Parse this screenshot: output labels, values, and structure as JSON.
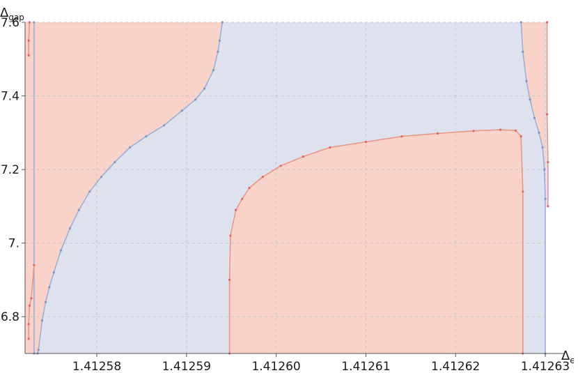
{
  "chart_data": {
    "type": "area",
    "title": "",
    "xlabel": {
      "symbol": "Δ",
      "sub": "ϵ"
    },
    "ylabel": {
      "symbol": "Δ",
      "sub": "gap"
    },
    "xlim": [
      1.412572,
      1.41263
    ],
    "ylim": [
      6.7,
      7.6
    ],
    "xticks": [
      1.41258,
      1.41259,
      1.4126,
      1.41261,
      1.41262,
      1.41263
    ],
    "xtick_labels": [
      "1.41258",
      "1.41259",
      "1.41260",
      "1.41261",
      "1.41262",
      "1.41263"
    ],
    "yticks": [
      6.8,
      7.0,
      7.2,
      7.4,
      7.6
    ],
    "ytick_labels": [
      "6.8",
      "7.",
      "7.2",
      "7.4",
      "7.6"
    ],
    "grid": true,
    "colors": {
      "red_fill": "#f9d3c9",
      "blue_fill": "#dde2ee",
      "red_line": "#e8978a",
      "blue_line": "#9eaed6",
      "red_point": "#e0685a",
      "blue_point": "#7f95c8",
      "grid": "#c8c8c8",
      "axis": "#555555"
    },
    "series": [
      {
        "color": "blue",
        "points": [
          [
            1.412573,
            6.7
          ],
          [
            1.412573,
            7.6
          ]
        ]
      },
      {
        "color": "red",
        "points": [
          [
            1.4125724,
            6.74
          ],
          [
            1.4125724,
            6.78
          ],
          [
            1.4125725,
            6.83
          ],
          [
            1.4125727,
            6.85
          ],
          [
            1.412573,
            6.94
          ]
        ]
      },
      {
        "color": "red",
        "points": [
          [
            1.4125724,
            7.51
          ],
          [
            1.4125724,
            7.55
          ],
          [
            1.4125725,
            7.6
          ]
        ]
      },
      {
        "color": "blue",
        "points": [
          [
            1.4125734,
            6.7
          ],
          [
            1.4125735,
            6.71
          ],
          [
            1.4125739,
            6.79
          ],
          [
            1.4125743,
            6.84
          ],
          [
            1.4125747,
            6.88
          ],
          [
            1.4125752,
            6.92
          ],
          [
            1.412576,
            6.98
          ],
          [
            1.412577,
            7.04
          ],
          [
            1.412578,
            7.09
          ],
          [
            1.4125792,
            7.14
          ],
          [
            1.4125805,
            7.18
          ],
          [
            1.412582,
            7.22
          ],
          [
            1.4125837,
            7.26
          ],
          [
            1.4125855,
            7.29
          ],
          [
            1.4125875,
            7.32
          ],
          [
            1.4125895,
            7.36
          ],
          [
            1.412591,
            7.39
          ],
          [
            1.412592,
            7.42
          ],
          [
            1.412593,
            7.47
          ],
          [
            1.4125935,
            7.52
          ],
          [
            1.4125937,
            7.55
          ],
          [
            1.412594,
            7.6
          ]
        ]
      },
      {
        "color": "red",
        "points": [
          [
            1.4125948,
            6.7
          ],
          [
            1.4125948,
            6.9
          ],
          [
            1.4125949,
            7.02
          ],
          [
            1.4125955,
            7.09
          ],
          [
            1.4125962,
            7.12
          ],
          [
            1.412597,
            7.15
          ],
          [
            1.4125985,
            7.18
          ],
          [
            1.4126005,
            7.21
          ],
          [
            1.412603,
            7.235
          ],
          [
            1.412606,
            7.26
          ],
          [
            1.41261,
            7.275
          ],
          [
            1.412614,
            7.29
          ],
          [
            1.412618,
            7.298
          ],
          [
            1.412622,
            7.305
          ],
          [
            1.412625,
            7.308
          ],
          [
            1.4126267,
            7.306
          ],
          [
            1.4126273,
            7.29
          ],
          [
            1.4126275,
            7.14
          ],
          [
            1.4126275,
            6.7
          ]
        ]
      },
      {
        "color": "blue",
        "points": [
          [
            1.4126273,
            7.6
          ],
          [
            1.4126275,
            7.52
          ],
          [
            1.4126279,
            7.44
          ],
          [
            1.4126283,
            7.39
          ],
          [
            1.4126288,
            7.34
          ],
          [
            1.4126293,
            7.3
          ],
          [
            1.4126297,
            7.26
          ],
          [
            1.4126299,
            7.2
          ],
          [
            1.41263,
            7.12
          ],
          [
            1.41263,
            6.7
          ]
        ]
      },
      {
        "color": "red",
        "points": [
          [
            1.4126302,
            7.6
          ],
          [
            1.4126302,
            7.35
          ],
          [
            1.4126303,
            7.22
          ],
          [
            1.4126303,
            7.1
          ]
        ]
      }
    ]
  }
}
